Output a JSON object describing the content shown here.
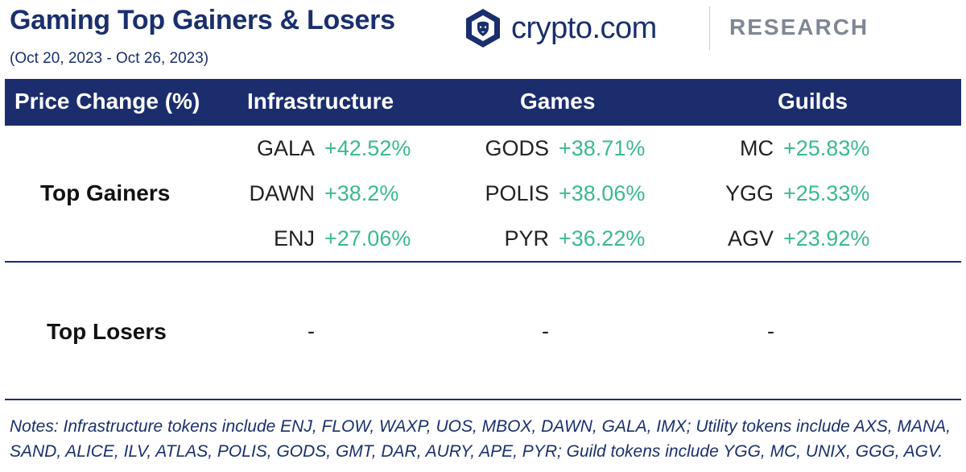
{
  "title": "Gaming Top Gainers & Losers",
  "subtitle": "(Oct 20, 2023 - Oct 26, 2023)",
  "brand": {
    "name": "crypto.com",
    "research": "RESEARCH",
    "logo_icon": "lion-shield-icon"
  },
  "colors": {
    "navy": "#1c2d6e",
    "gain_green": "#3aba8f",
    "research_gray": "#7f8794"
  },
  "table": {
    "header": {
      "price_change": "Price Change (%)",
      "infrastructure": "Infrastructure",
      "games": "Games",
      "guilds": "Guilds"
    },
    "rows": {
      "gainers_label": "Top Gainers",
      "losers_label": "Top Losers"
    },
    "gainers": {
      "infrastructure": [
        {
          "symbol": "GALA",
          "change": "+42.52%"
        },
        {
          "symbol": "DAWN",
          "change": "+38.2%"
        },
        {
          "symbol": "ENJ",
          "change": "+27.06%"
        }
      ],
      "games": [
        {
          "symbol": "GODS",
          "change": "+38.71%"
        },
        {
          "symbol": "POLIS",
          "change": "+38.06%"
        },
        {
          "symbol": "PYR",
          "change": "+36.22%"
        }
      ],
      "guilds": [
        {
          "symbol": "MC",
          "change": "+25.83%"
        },
        {
          "symbol": "YGG",
          "change": "+25.33%"
        },
        {
          "symbol": "AGV",
          "change": "+23.92%"
        }
      ]
    },
    "losers": {
      "infrastructure": "-",
      "games": "-",
      "guilds": "-"
    }
  },
  "notes": "Notes: Infrastructure tokens include ENJ, FLOW, WAXP, UOS, MBOX, DAWN, GALA, IMX; Utility tokens include AXS, MANA, SAND, ALICE, ILV, ATLAS, POLIS, GODS, GMT, DAR, AURY, APE, PYR; Guild tokens include YGG, MC, UNIX, GGG, AGV."
}
